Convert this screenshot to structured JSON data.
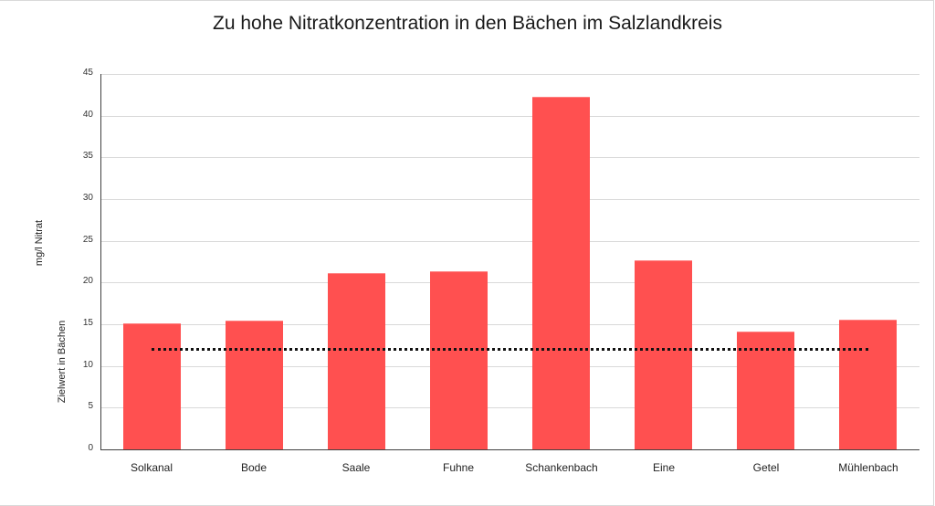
{
  "chart_data": {
    "type": "bar",
    "title": "Zu hohe Nitratkonzentration in den Bächen im Salzlandkreis",
    "xlabel": "",
    "ylabel": "mg/l Nitrat",
    "ylabel_secondary": "Zielwert in Bächen",
    "ylim": [
      0,
      45
    ],
    "yticks": [
      0,
      5,
      10,
      15,
      20,
      25,
      30,
      35,
      40,
      45
    ],
    "grid": true,
    "legend": "none",
    "categories": [
      "Solkanal",
      "Bode",
      "Saale",
      "Fuhne",
      "Schankenbach",
      "Eine",
      "Getel",
      "Mühlenbach"
    ],
    "series": [
      {
        "name": "mg/l Nitrat",
        "type": "bar",
        "color": "#ff5050",
        "values": [
          15.1,
          15.4,
          21.1,
          21.3,
          42.3,
          22.7,
          14.1,
          15.5
        ]
      },
      {
        "name": "Zielwert in Bächen",
        "type": "line",
        "style": "dotted",
        "color": "#111111",
        "values": [
          12,
          12,
          12,
          12,
          12,
          12,
          12,
          12
        ]
      }
    ]
  }
}
